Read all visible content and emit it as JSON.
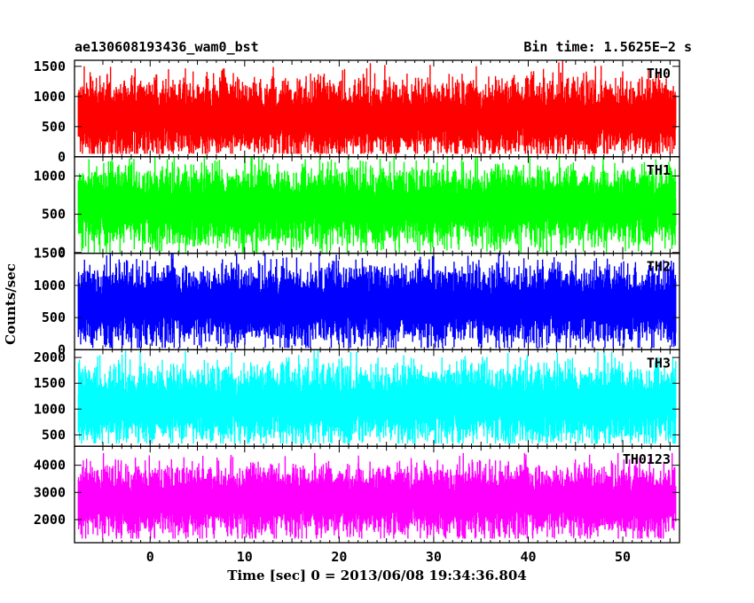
{
  "title_left": "ae130608193436_wam0_bst",
  "title_right": "Bin time: 1.5625E−2 s",
  "chart_data": {
    "type": "line",
    "xlabel": "Time [sec] 0 = 2013/06/08 19:34:36.804",
    "ylabel": "Counts/sec",
    "xlim": [
      -8,
      56
    ],
    "xticks": [
      0,
      10,
      20,
      30,
      40,
      50
    ],
    "bin_time_s": 0.015625,
    "panels": [
      {
        "name": "TH0",
        "color": "#ff0000",
        "ylim": [
          0,
          1600
        ],
        "yticks": [
          0,
          500,
          1000,
          1500
        ],
        "x_start": -7.6,
        "x_end": 55.6,
        "mean": 650,
        "min": 50,
        "max": 1600
      },
      {
        "name": "TH1",
        "color": "#00ff00",
        "ylim": [
          -10,
          1250
        ],
        "yticks": [
          0,
          500,
          1000
        ],
        "x_start": -7.6,
        "x_end": 55.6,
        "mean": 600,
        "min": 0,
        "max": 1250
      },
      {
        "name": "TH2",
        "color": "#0000ff",
        "ylim": [
          0,
          1500
        ],
        "yticks": [
          0,
          500,
          1000,
          1500
        ],
        "x_start": -7.6,
        "x_end": 55.6,
        "mean": 700,
        "min": 30,
        "max": 1500
      },
      {
        "name": "TH3",
        "color": "#00ffff",
        "ylim": [
          280,
          2150
        ],
        "yticks": [
          500,
          1000,
          1500,
          2000
        ],
        "x_start": -7.6,
        "x_end": 55.6,
        "mean": 1100,
        "min": 330,
        "max": 2150
      },
      {
        "name": "TH0123",
        "color": "#ff00ff",
        "ylim": [
          1150,
          4700
        ],
        "yticks": [
          2000,
          3000,
          4000
        ],
        "x_start": -7.6,
        "x_end": 55.6,
        "mean": 2700,
        "min": 1300,
        "max": 4450
      }
    ]
  }
}
